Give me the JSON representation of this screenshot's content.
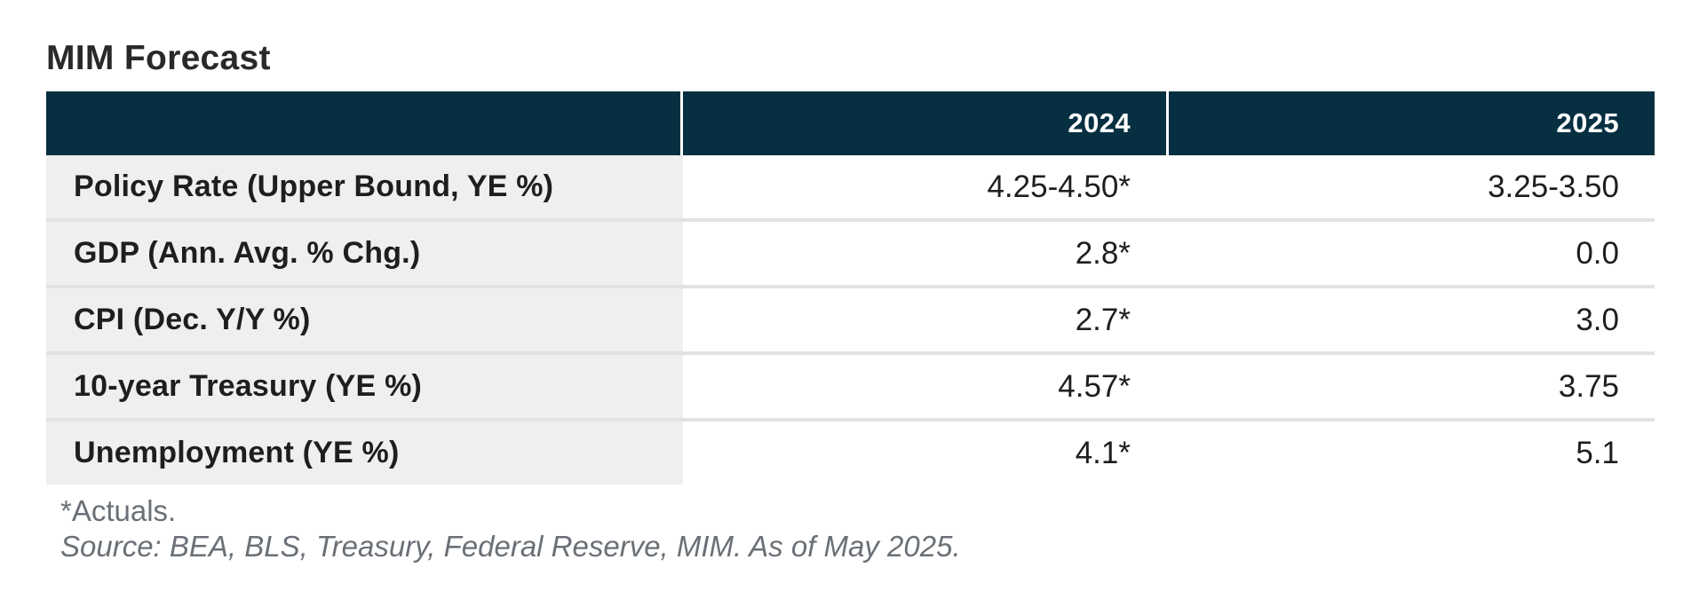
{
  "title": "MIM Forecast",
  "table": {
    "year_headers": [
      "2024",
      "2025"
    ],
    "rows": [
      {
        "label": "Policy Rate (Upper Bound, YE %)",
        "y2024": "4.25-4.50*",
        "y2025": "3.25-3.50"
      },
      {
        "label": "GDP (Ann. Avg. % Chg.)",
        "y2024": "2.8*",
        "y2025": "0.0"
      },
      {
        "label": "CPI (Dec. Y/Y %)",
        "y2024": "2.7*",
        "y2025": "3.0"
      },
      {
        "label": "10-year Treasury (YE %)",
        "y2024": "4.57*",
        "y2025": "3.75"
      },
      {
        "label": "Unemployment (YE %)",
        "y2024": "4.1*",
        "y2025": "5.1"
      }
    ]
  },
  "footnotes": {
    "actuals": "*Actuals.",
    "source": "Source: BEA, BLS, Treasury, Federal Reserve, MIM. As of May 2025."
  },
  "colors": {
    "header_bg": "#062f41",
    "header_text": "#ffffff",
    "label_column_bg": "#efefef",
    "row_separator": "#e2e2e2",
    "body_text": "#1e1e1e",
    "title_text": "#2b2829",
    "footnote_text": "#6a7076"
  },
  "chart_data": {
    "type": "table",
    "title": "MIM Forecast",
    "columns": [
      "",
      "2024",
      "2025"
    ],
    "rows": [
      [
        "Policy Rate (Upper Bound, YE %)",
        "4.25-4.50*",
        "3.25-3.50"
      ],
      [
        "GDP (Ann. Avg. % Chg.)",
        "2.8*",
        "0.0"
      ],
      [
        "CPI (Dec. Y/Y %)",
        "2.7*",
        "3.0"
      ],
      [
        "10-year Treasury (YE %)",
        "4.57*",
        "3.75"
      ],
      [
        "Unemployment (YE %)",
        "4.1*",
        "5.1"
      ]
    ],
    "notes": [
      "*Actuals.",
      "Source: BEA, BLS, Treasury, Federal Reserve, MIM. As of May 2025."
    ],
    "layout_hints": {
      "asterisk_meaning": "actual reported values; unmarked 2025 values are forecasts",
      "value_alignment": "right",
      "header_style": "dark teal band with white year labels"
    }
  }
}
